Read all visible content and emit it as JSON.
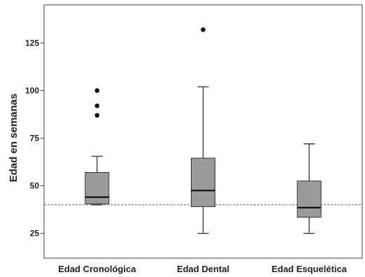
{
  "chart_data": {
    "type": "boxplot",
    "title": "",
    "xlabel": "",
    "ylabel": "Edad en semanas",
    "ylim": [
      12,
      145
    ],
    "yticks": [
      25,
      50,
      75,
      100,
      125
    ],
    "reference_line": 40,
    "grid": false,
    "categories": [
      "Edad Cronológica",
      "Edad Dental",
      "Edad Esquelética"
    ],
    "boxes": [
      {
        "whisker_low": 40,
        "q1": 40.5,
        "median": 44,
        "q3": 57,
        "whisker_high": 65.5,
        "outliers": [
          87,
          92,
          100
        ]
      },
      {
        "whisker_low": 25,
        "q1": 39,
        "median": 47.5,
        "q3": 64.5,
        "whisker_high": 102,
        "outliers": [
          132
        ]
      },
      {
        "whisker_low": 25,
        "q1": 33.5,
        "median": 38.5,
        "q3": 52.5,
        "whisker_high": 72,
        "outliers": []
      }
    ],
    "colors": {
      "box_fill": "#9b9b9b",
      "box_stroke": "#333333",
      "median": "#111111",
      "reference_line": "#666666",
      "outlier": "#111111"
    }
  }
}
